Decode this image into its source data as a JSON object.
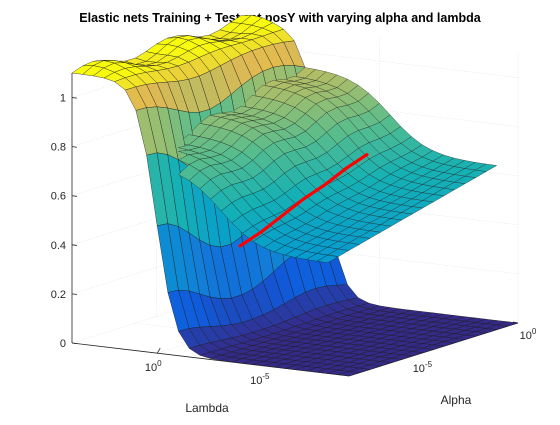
{
  "chart_data": {
    "type": "surface",
    "title": "Elastic nets Training + Test set posY with varying alpha and lambda",
    "xlabel": "Lambda",
    "ylabel": "Alpha",
    "zlabel": "",
    "zlim": [
      0,
      1.1
    ],
    "z_ticks": [
      "0",
      "0.2",
      "0.4",
      "0.6",
      "0.8",
      "1"
    ],
    "lambda_ticks": [
      {
        "base": "10",
        "exp": "0",
        "log10": 0
      },
      {
        "base": "10",
        "exp": "-5",
        "log10": -5
      }
    ],
    "alpha_ticks": [
      {
        "base": "10",
        "exp": "-5",
        "log10": -5
      },
      {
        "base": "10",
        "exp": "0",
        "log10": 0
      }
    ],
    "lambda_log10_range": [
      4,
      -9
    ],
    "alpha_log10_range": [
      -8,
      0
    ],
    "grid": true,
    "colormap": "parula",
    "series": [
      {
        "name": "",
        "surface": "training",
        "description_points": {
          "plateau_z": 1.1,
          "floor_z": 0.0,
          "transition_lambda_log10": 0.2
        }
      },
      {
        "name": "",
        "surface": "test",
        "plateau_z": 0.82,
        "floor_z": 0.45,
        "transition_lambda_log10": -3.0
      },
      {
        "name": "",
        "line": "optimum",
        "color": "#ff0000",
        "alpha_log10": [
          -7.0,
          -6.0,
          -5.0,
          -4.0,
          -3.0,
          -2.0,
          -1.0
        ],
        "z": [
          0.44,
          0.47,
          0.51,
          0.55,
          0.58,
          0.62,
          0.65
        ]
      }
    ]
  }
}
